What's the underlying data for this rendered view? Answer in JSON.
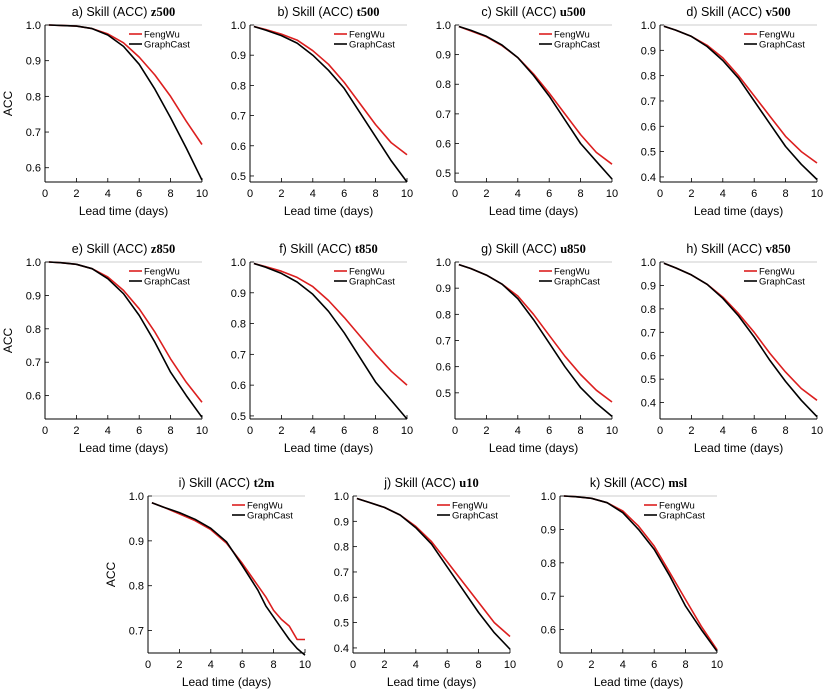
{
  "colors": {
    "fengwu": "#dc1f1f",
    "graphcast": "#000000",
    "axis": "#000000"
  },
  "chart_data": [
    {
      "id": "a",
      "type": "line",
      "title_prefix": "a) Skill (ACC)",
      "var": "z500",
      "ylabel": "ACC",
      "xlabel": "Lead time (days)",
      "xlim": [
        0,
        10
      ],
      "ylim": [
        0.56,
        1.0
      ],
      "xticks": [
        0,
        2,
        4,
        6,
        8,
        10
      ],
      "yticks": [
        0.6,
        0.7,
        0.8,
        0.9,
        1.0
      ],
      "series": [
        {
          "name": "FengWu",
          "x": [
            0.25,
            1,
            2,
            3,
            4,
            5,
            6,
            7,
            8,
            9,
            10
          ],
          "y": [
            1.0,
            0.999,
            0.997,
            0.99,
            0.975,
            0.95,
            0.91,
            0.86,
            0.8,
            0.73,
            0.665
          ]
        },
        {
          "name": "GraphCast",
          "x": [
            0.25,
            1,
            2,
            3,
            4,
            5,
            6,
            7,
            8,
            9,
            10
          ],
          "y": [
            1.0,
            0.999,
            0.997,
            0.99,
            0.972,
            0.94,
            0.89,
            0.82,
            0.74,
            0.655,
            0.565
          ]
        }
      ]
    },
    {
      "id": "b",
      "type": "line",
      "title_prefix": "b) Skill (ACC)",
      "var": "t500",
      "ylabel": "",
      "xlabel": "Lead time (days)",
      "xlim": [
        0,
        10
      ],
      "ylim": [
        0.48,
        1.0
      ],
      "xticks": [
        0,
        2,
        4,
        6,
        8,
        10
      ],
      "yticks": [
        0.5,
        0.6,
        0.7,
        0.8,
        0.9,
        1.0
      ],
      "series": [
        {
          "name": "FengWu",
          "x": [
            0.25,
            1,
            2,
            3,
            4,
            5,
            6,
            7,
            8,
            9,
            10
          ],
          "y": [
            0.995,
            0.985,
            0.97,
            0.95,
            0.915,
            0.87,
            0.81,
            0.74,
            0.67,
            0.61,
            0.57
          ]
        },
        {
          "name": "GraphCast",
          "x": [
            0.25,
            1,
            2,
            3,
            4,
            5,
            6,
            7,
            8,
            9,
            10
          ],
          "y": [
            0.995,
            0.983,
            0.965,
            0.94,
            0.9,
            0.85,
            0.79,
            0.71,
            0.63,
            0.55,
            0.48
          ]
        }
      ]
    },
    {
      "id": "c",
      "type": "line",
      "title_prefix": "c) Skill (ACC)",
      "var": "u500",
      "ylabel": "",
      "xlabel": "Lead time (days)",
      "xlim": [
        0,
        10
      ],
      "ylim": [
        0.47,
        1.0
      ],
      "xticks": [
        0,
        2,
        4,
        6,
        8,
        10
      ],
      "yticks": [
        0.5,
        0.6,
        0.7,
        0.8,
        0.9,
        1.0
      ],
      "series": [
        {
          "name": "FengWu",
          "x": [
            0.25,
            1,
            2,
            3,
            4,
            5,
            6,
            7,
            8,
            9,
            10
          ],
          "y": [
            0.995,
            0.98,
            0.96,
            0.93,
            0.89,
            0.835,
            0.77,
            0.7,
            0.63,
            0.57,
            0.53
          ]
        },
        {
          "name": "GraphCast",
          "x": [
            0.25,
            1,
            2,
            3,
            4,
            5,
            6,
            7,
            8,
            9,
            10
          ],
          "y": [
            0.995,
            0.982,
            0.962,
            0.932,
            0.89,
            0.83,
            0.76,
            0.68,
            0.6,
            0.54,
            0.48
          ]
        }
      ]
    },
    {
      "id": "d",
      "type": "line",
      "title_prefix": "d) Skill (ACC)",
      "var": "v500",
      "ylabel": "",
      "xlabel": "Lead time (days)",
      "xlim": [
        0,
        10
      ],
      "ylim": [
        0.38,
        1.0
      ],
      "xticks": [
        0,
        2,
        4,
        6,
        8,
        10
      ],
      "yticks": [
        0.4,
        0.5,
        0.6,
        0.7,
        0.8,
        0.9,
        1.0
      ],
      "series": [
        {
          "name": "FengWu",
          "x": [
            0.25,
            1,
            2,
            3,
            4,
            5,
            6,
            7,
            8,
            9,
            10
          ],
          "y": [
            0.995,
            0.98,
            0.955,
            0.92,
            0.87,
            0.8,
            0.72,
            0.64,
            0.56,
            0.5,
            0.455
          ]
        },
        {
          "name": "GraphCast",
          "x": [
            0.25,
            1,
            2,
            3,
            4,
            5,
            6,
            7,
            8,
            9,
            10
          ],
          "y": [
            0.995,
            0.98,
            0.955,
            0.915,
            0.86,
            0.79,
            0.7,
            0.61,
            0.52,
            0.45,
            0.39
          ]
        }
      ]
    },
    {
      "id": "e",
      "type": "line",
      "title_prefix": "e) Skill (ACC)",
      "var": "z850",
      "ylabel": "ACC",
      "xlabel": "Lead time (days)",
      "xlim": [
        0,
        10
      ],
      "ylim": [
        0.53,
        1.0
      ],
      "xticks": [
        0,
        2,
        4,
        6,
        8,
        10
      ],
      "yticks": [
        0.6,
        0.7,
        0.8,
        0.9,
        1.0
      ],
      "series": [
        {
          "name": "FengWu",
          "x": [
            0.25,
            1,
            2,
            3,
            4,
            5,
            6,
            7,
            8,
            9,
            10
          ],
          "y": [
            1.0,
            0.998,
            0.993,
            0.98,
            0.955,
            0.915,
            0.86,
            0.79,
            0.71,
            0.64,
            0.58
          ]
        },
        {
          "name": "GraphCast",
          "x": [
            0.25,
            1,
            2,
            3,
            4,
            5,
            6,
            7,
            8,
            9,
            10
          ],
          "y": [
            1.0,
            0.998,
            0.993,
            0.98,
            0.95,
            0.905,
            0.84,
            0.76,
            0.67,
            0.6,
            0.535
          ]
        }
      ]
    },
    {
      "id": "f",
      "type": "line",
      "title_prefix": "f) Skill (ACC)",
      "var": "t850",
      "ylabel": "",
      "xlabel": "Lead time (days)",
      "xlim": [
        0,
        10
      ],
      "ylim": [
        0.49,
        1.0
      ],
      "xticks": [
        0,
        2,
        4,
        6,
        8,
        10
      ],
      "yticks": [
        0.5,
        0.6,
        0.7,
        0.8,
        0.9,
        1.0
      ],
      "series": [
        {
          "name": "FengWu",
          "x": [
            0.25,
            1,
            2,
            3,
            4,
            5,
            6,
            7,
            8,
            9,
            10
          ],
          "y": [
            0.995,
            0.985,
            0.97,
            0.95,
            0.92,
            0.875,
            0.82,
            0.76,
            0.7,
            0.645,
            0.6
          ]
        },
        {
          "name": "GraphCast",
          "x": [
            0.25,
            1,
            2,
            3,
            4,
            5,
            6,
            7,
            8,
            9,
            10
          ],
          "y": [
            0.995,
            0.983,
            0.963,
            0.935,
            0.895,
            0.84,
            0.77,
            0.69,
            0.61,
            0.55,
            0.49
          ]
        }
      ]
    },
    {
      "id": "g",
      "type": "line",
      "title_prefix": "g) Skill (ACC)",
      "var": "u850",
      "ylabel": "",
      "xlabel": "Lead time (days)",
      "xlim": [
        0,
        10
      ],
      "ylim": [
        0.4,
        1.0
      ],
      "xticks": [
        0,
        2,
        4,
        6,
        8,
        10
      ],
      "yticks": [
        0.5,
        0.6,
        0.7,
        0.8,
        0.9,
        1.0
      ],
      "series": [
        {
          "name": "FengWu",
          "x": [
            0.25,
            1,
            2,
            3,
            4,
            5,
            6,
            7,
            8,
            9,
            10
          ],
          "y": [
            0.99,
            0.975,
            0.95,
            0.915,
            0.87,
            0.8,
            0.72,
            0.64,
            0.57,
            0.51,
            0.465
          ]
        },
        {
          "name": "GraphCast",
          "x": [
            0.25,
            1,
            2,
            3,
            4,
            5,
            6,
            7,
            8,
            9,
            10
          ],
          "y": [
            0.99,
            0.975,
            0.95,
            0.915,
            0.86,
            0.78,
            0.69,
            0.6,
            0.52,
            0.46,
            0.41
          ]
        }
      ]
    },
    {
      "id": "h",
      "type": "line",
      "title_prefix": "h) Skill (ACC)",
      "var": "v850",
      "ylabel": "",
      "xlabel": "Lead time (days)",
      "xlim": [
        0,
        10
      ],
      "ylim": [
        0.33,
        1.0
      ],
      "xticks": [
        0,
        2,
        4,
        6,
        8,
        10
      ],
      "yticks": [
        0.4,
        0.5,
        0.6,
        0.7,
        0.8,
        0.9,
        1.0
      ],
      "series": [
        {
          "name": "FengWu",
          "x": [
            0.25,
            1,
            2,
            3,
            4,
            5,
            6,
            7,
            8,
            9,
            10
          ],
          "y": [
            0.995,
            0.975,
            0.945,
            0.905,
            0.85,
            0.78,
            0.7,
            0.61,
            0.53,
            0.46,
            0.41
          ]
        },
        {
          "name": "GraphCast",
          "x": [
            0.25,
            1,
            2,
            3,
            4,
            5,
            6,
            7,
            8,
            9,
            10
          ],
          "y": [
            0.995,
            0.975,
            0.945,
            0.905,
            0.845,
            0.77,
            0.68,
            0.58,
            0.49,
            0.41,
            0.34
          ]
        }
      ]
    },
    {
      "id": "i",
      "type": "line",
      "title_prefix": "i) Skill (ACC)",
      "var": "t2m",
      "ylabel": "ACC",
      "xlabel": "Lead time (days)",
      "xlim": [
        0,
        10
      ],
      "ylim": [
        0.65,
        1.0
      ],
      "xticks": [
        0,
        2,
        4,
        6,
        8,
        10
      ],
      "yticks": [
        0.7,
        0.8,
        0.9,
        1.0
      ],
      "series": [
        {
          "name": "FengWu",
          "x": [
            0.25,
            1,
            2,
            3,
            4,
            5,
            6,
            7,
            7.5,
            8,
            8.5,
            9,
            9.5,
            10
          ],
          "y": [
            0.985,
            0.975,
            0.96,
            0.945,
            0.925,
            0.895,
            0.85,
            0.8,
            0.775,
            0.745,
            0.725,
            0.71,
            0.68,
            0.68
          ]
        },
        {
          "name": "GraphCast",
          "x": [
            0.25,
            1,
            2,
            3,
            4,
            5,
            6,
            7,
            7.5,
            8,
            8.5,
            9,
            9.5,
            10
          ],
          "y": [
            0.985,
            0.975,
            0.963,
            0.948,
            0.928,
            0.898,
            0.845,
            0.79,
            0.755,
            0.73,
            0.705,
            0.68,
            0.66,
            0.645
          ]
        }
      ]
    },
    {
      "id": "j",
      "type": "line",
      "title_prefix": "j) Skill (ACC)",
      "var": "u10",
      "ylabel": "",
      "xlabel": "Lead time (days)",
      "xlim": [
        0,
        10
      ],
      "ylim": [
        0.38,
        1.0
      ],
      "xticks": [
        0,
        2,
        4,
        6,
        8,
        10
      ],
      "yticks": [
        0.4,
        0.5,
        0.6,
        0.7,
        0.8,
        0.9,
        1.0
      ],
      "series": [
        {
          "name": "FengWu",
          "x": [
            0.25,
            1,
            2,
            3,
            4,
            5,
            6,
            7,
            8,
            9,
            10
          ],
          "y": [
            0.99,
            0.975,
            0.955,
            0.925,
            0.88,
            0.82,
            0.74,
            0.66,
            0.58,
            0.5,
            0.445
          ]
        },
        {
          "name": "GraphCast",
          "x": [
            0.25,
            1,
            2,
            3,
            4,
            5,
            6,
            7,
            8,
            9,
            10
          ],
          "y": [
            0.99,
            0.975,
            0.955,
            0.925,
            0.875,
            0.81,
            0.72,
            0.63,
            0.54,
            0.46,
            0.395
          ]
        }
      ]
    },
    {
      "id": "k",
      "type": "line",
      "title_prefix": "k) Skill (ACC)",
      "var": "msl",
      "ylabel": "",
      "xlabel": "Lead time (days)",
      "xlim": [
        0,
        10
      ],
      "ylim": [
        0.53,
        1.0
      ],
      "xticks": [
        0,
        2,
        4,
        6,
        8,
        10
      ],
      "yticks": [
        0.6,
        0.7,
        0.8,
        0.9,
        1.0
      ],
      "series": [
        {
          "name": "FengWu",
          "x": [
            0.25,
            1,
            2,
            3,
            4,
            5,
            6,
            7,
            8,
            9,
            10
          ],
          "y": [
            1.0,
            0.998,
            0.993,
            0.98,
            0.955,
            0.91,
            0.85,
            0.77,
            0.69,
            0.61,
            0.54
          ]
        },
        {
          "name": "GraphCast",
          "x": [
            0.25,
            1,
            2,
            3,
            4,
            5,
            6,
            7,
            8,
            9,
            10
          ],
          "y": [
            1.0,
            0.998,
            0.993,
            0.98,
            0.95,
            0.9,
            0.84,
            0.76,
            0.67,
            0.6,
            0.535
          ]
        }
      ]
    }
  ]
}
